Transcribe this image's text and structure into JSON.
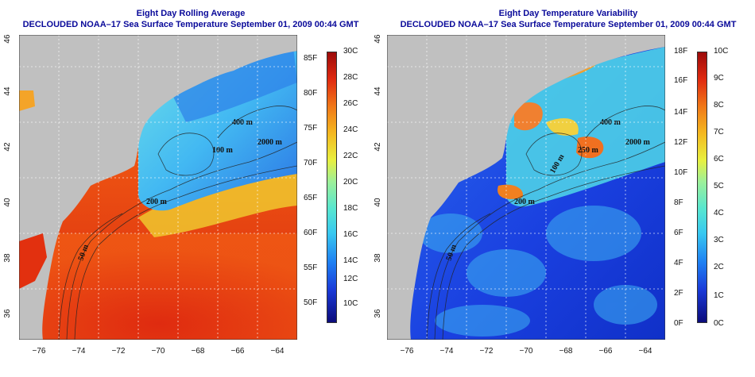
{
  "panels": [
    {
      "title_line1": "Eight Day Rolling Average",
      "title_line2": "DECLOUDED NOAA–17 Sea Surface Temperature September 01, 2009 00:44 GMT",
      "fahrenheit_ticks": [
        "85F",
        "80F",
        "75F",
        "70F",
        "65F",
        "60F",
        "55F",
        "50F"
      ],
      "celsius_ticks": [
        "30C",
        "28C",
        "26C",
        "24C",
        "22C",
        "20C",
        "18C",
        "16C",
        "14C",
        "12C",
        "10C"
      ],
      "depth_labels": [
        "400 m",
        "2000 m",
        "100 m",
        "200 m",
        "50 m"
      ]
    },
    {
      "title_line1": "Eight Day Temperature Variability",
      "title_line2": "DECLOUDED NOAA–17 Sea Surface Temperature September 01, 2009 00:44 GMT",
      "fahrenheit_ticks": [
        "18F",
        "16F",
        "14F",
        "12F",
        "10F",
        "8F",
        "6F",
        "4F",
        "2F",
        "0F"
      ],
      "celsius_ticks": [
        "10C",
        "9C",
        "8C",
        "7C",
        "6C",
        "5C",
        "4C",
        "3C",
        "2C",
        "1C",
        "0C"
      ],
      "depth_labels": [
        "400 m",
        "2000 m",
        "250 m",
        "100 m",
        "200 m",
        "50 m"
      ]
    }
  ],
  "x_ticks": [
    "−76",
    "−74",
    "−72",
    "−70",
    "−68",
    "−66",
    "−64"
  ],
  "y_ticks": [
    "36",
    "38",
    "40",
    "42",
    "44",
    "46"
  ],
  "colors": {
    "title": "#0a0a9a",
    "land": "#c0c0c0",
    "warm_water": "#e8380e",
    "cool_water": "#3a8ef0",
    "variability_low": "#1a40e0"
  }
}
